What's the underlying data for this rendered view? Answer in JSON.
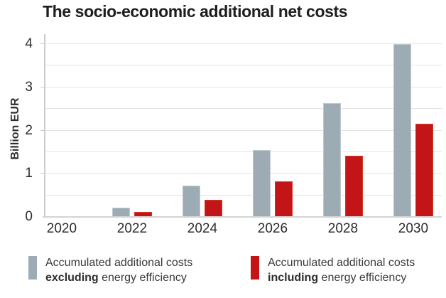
{
  "title": "The socio-economic additional net costs",
  "chart_data": {
    "type": "bar",
    "categories": [
      "2020",
      "2022",
      "2024",
      "2026",
      "2028",
      "2030"
    ],
    "series": [
      {
        "name": "Accumulated additional costs excluding energy efficiency",
        "color": "#9dacb4",
        "values": [
          0,
          0.22,
          0.73,
          1.55,
          2.63,
          4.0
        ]
      },
      {
        "name": "Accumulated additional costs including energy efficiency",
        "color": "#c31517",
        "values": [
          0,
          0.11,
          0.4,
          0.82,
          1.41,
          2.15
        ]
      }
    ],
    "ylabel": "Billion EUR",
    "xlabel": "",
    "ylim": [
      0,
      4
    ],
    "yticks": [
      0,
      1,
      2,
      3,
      4
    ],
    "grid_step": 0.5,
    "grid": true,
    "legend_position": "bottom"
  },
  "legend": {
    "items": [
      {
        "prefix": "Accumulated additional costs",
        "bold_word": "excluding",
        "suffix": " energy efficiency",
        "color": "#9dacb4"
      },
      {
        "prefix": "Accumulated additional costs",
        "bold_word": "including",
        "suffix": " energy efficiency",
        "color": "#c31517"
      }
    ]
  },
  "colors": {
    "title_text": "#1d1d1b",
    "axis_text": "#2d2d2d",
    "legend_text": "#3a3a39",
    "gridline": "#e4e4e4",
    "axis_line": "#cccccc",
    "baseline": "#d4d4d4",
    "bar_excluding": "#9dacb4",
    "bar_including": "#c31517",
    "background": "#ffffff"
  }
}
